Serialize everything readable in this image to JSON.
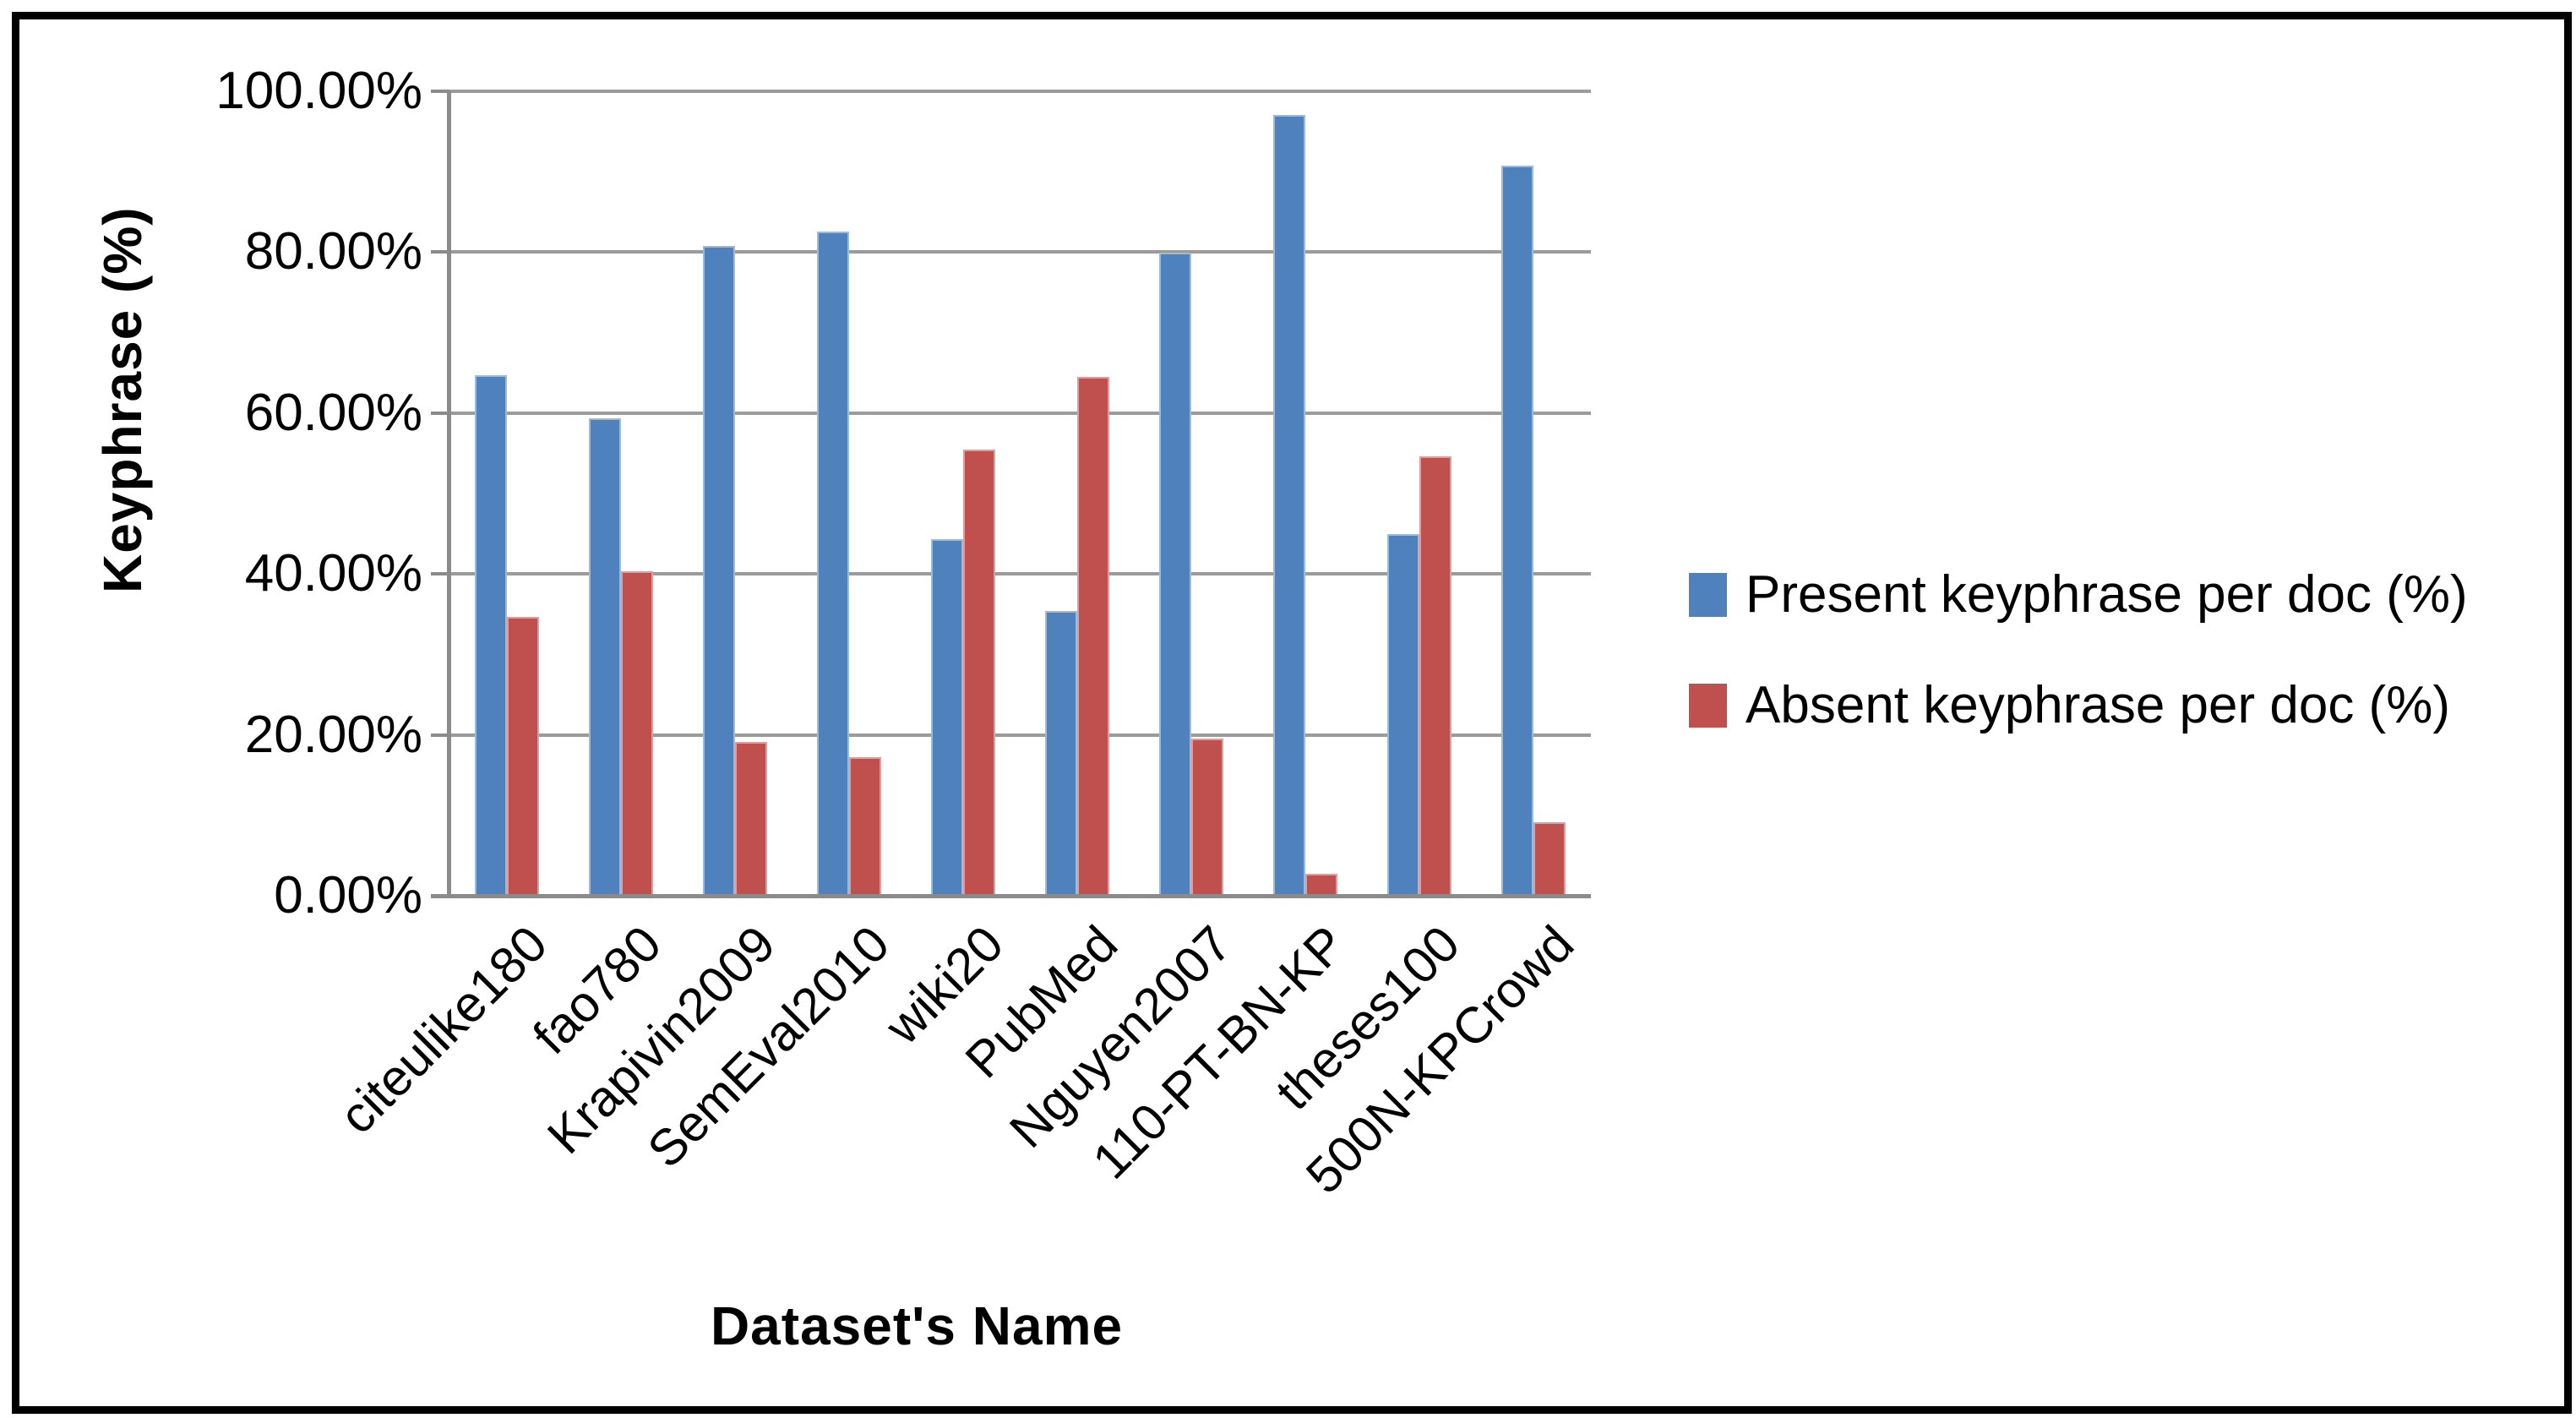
{
  "chart_data": {
    "type": "bar",
    "title": "",
    "categories": [
      "citeulike180",
      "fao780",
      "Krapivin2009",
      "SemEval2010",
      "wiki20",
      "PubMed",
      "Nguyen2007",
      "110-PT-BN-KP",
      "theses100",
      "500N-KPCrowd"
    ],
    "series": [
      {
        "name": "Present keyphrase per doc (%)",
        "color": "#4F81BD",
        "values": [
          64.7,
          59.4,
          80.8,
          82.6,
          44.3,
          35.4,
          79.9,
          97.1,
          45.0,
          90.8
        ]
      },
      {
        "name": "Absent keyphrase per doc (%)",
        "color": "#C0504D",
        "values": [
          34.7,
          40.3,
          19.1,
          17.2,
          55.5,
          64.5,
          19.5,
          2.7,
          54.6,
          9.1
        ]
      }
    ],
    "xlabel": "Dataset's Name",
    "ylabel": "Keyphrase (%)",
    "ylim": [
      0,
      100
    ],
    "ytick_step": 20,
    "ytick_labels": [
      "0.00%",
      "20.00%",
      "40.00%",
      "60.00%",
      "80.00%",
      "100.00%"
    ],
    "grid": true,
    "legend_position": "right",
    "bar_orientation": "vertical"
  },
  "colors": {
    "present_series": "#4F81BD",
    "absent_series": "#C0504D",
    "gridline": "#9b9b9b",
    "axis": "#8b8b8b",
    "text": "#000000",
    "frame_border": "#000000",
    "background": "#ffffff"
  }
}
